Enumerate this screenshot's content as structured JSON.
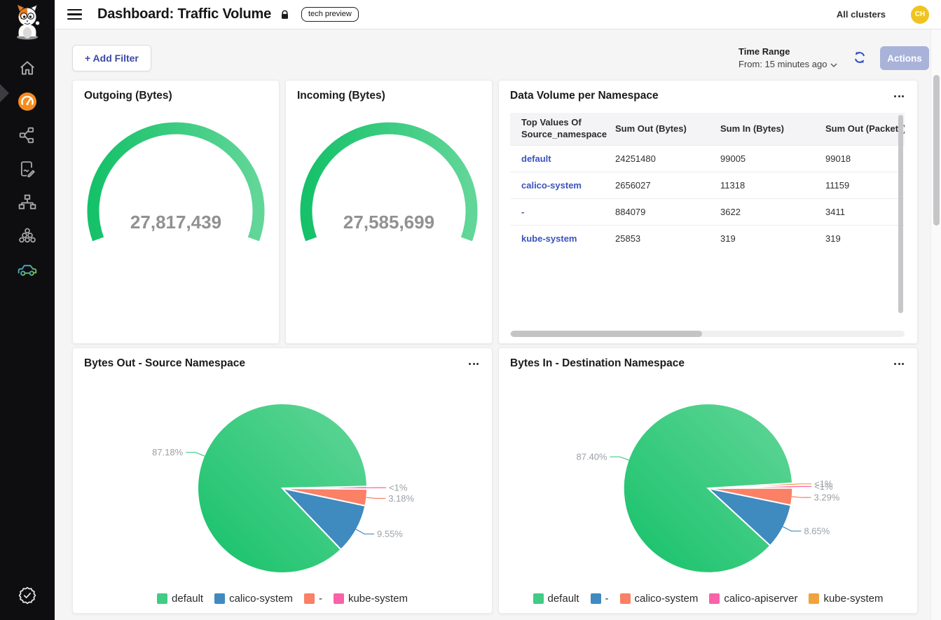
{
  "header": {
    "title": "Dashboard: Traffic Volume",
    "badge": "tech preview",
    "clusters": "All clusters",
    "avatar": "CH"
  },
  "sidebar": {
    "icons": [
      "calico-cat-logo",
      "home",
      "dashboards-gauge",
      "service-graph",
      "policies-edit",
      "network-topology",
      "workload-clusters",
      "traffic-car",
      "compliance-check-badge"
    ],
    "active_item": "dashboards-gauge"
  },
  "toolbar": {
    "add_filter": "+ Add Filter",
    "time_range_label": "Time Range",
    "time_range_value": "From: 15 minutes ago",
    "actions": "Actions"
  },
  "gauges": [
    {
      "title": "Outgoing (Bytes)",
      "display": "27,817,439",
      "value": 27817439
    },
    {
      "title": "Incoming (Bytes)",
      "display": "27,585,699",
      "value": 27585699
    }
  ],
  "table": {
    "title": "Data Volume per Namespace",
    "columns": [
      "Top Values Of Source_namespace",
      "Sum Out (Bytes)",
      "Sum In (Bytes)",
      "Sum Out (Packets)"
    ],
    "rows": [
      [
        "default",
        "24251480",
        "99005",
        "99018"
      ],
      [
        "calico-system",
        "2656027",
        "11318",
        "11159"
      ],
      [
        "-",
        "884079",
        "3622",
        "3411"
      ],
      [
        "kube-system",
        "25853",
        "319",
        "319"
      ]
    ]
  },
  "pies": [
    {
      "title": "Bytes Out - Source Namespace",
      "start_angle": 1.3,
      "slices": [
        {
          "name": "default",
          "label": "87.18%",
          "pct": 87.18,
          "visual_pct": 86.77,
          "color": "#41cb85",
          "gradient": true
        },
        {
          "name": "calico-system",
          "label": "9.55%",
          "pct": 9.55,
          "visual_pct": 9.55,
          "color": "#3f8abf"
        },
        {
          "name": "-",
          "label": "3.18%",
          "pct": 3.18,
          "visual_pct": 3.18,
          "color": "#fa8066"
        },
        {
          "name": "kube-system",
          "label": "<1%",
          "pct": 0.09,
          "visual_pct": 0.5,
          "color": "#f961a8"
        }
      ]
    },
    {
      "title": "Bytes In - Destination Namespace",
      "start_angle": 3.5,
      "slices": [
        {
          "name": "default",
          "label": "87.40%",
          "pct": 87.4,
          "visual_pct": 87.16,
          "color": "#41cb85",
          "gradient": true
        },
        {
          "name": "-",
          "label": "8.65%",
          "pct": 8.65,
          "visual_pct": 8.65,
          "color": "#3f8abf"
        },
        {
          "name": "calico-system",
          "label": "3.29%",
          "pct": 3.29,
          "visual_pct": 3.29,
          "color": "#fa8066"
        },
        {
          "name": "calico-apiserver",
          "label": "<1%",
          "pct": 0.37,
          "visual_pct": 0.45,
          "color": "#f961a8"
        },
        {
          "name": "kube-system",
          "label": "<1%",
          "pct": 0.29,
          "visual_pct": 0.45,
          "color": "#f0a23f"
        }
      ]
    }
  ],
  "chart_data": [
    {
      "type": "gauge",
      "title": "Outgoing (Bytes)",
      "value": 27817439,
      "display": "27,817,439",
      "arc_degrees": [
        200,
        -20
      ],
      "color": "green-gradient"
    },
    {
      "type": "gauge",
      "title": "Incoming (Bytes)",
      "value": 27585699,
      "display": "27,585,699",
      "arc_degrees": [
        200,
        -20
      ],
      "color": "green-gradient"
    },
    {
      "type": "pie",
      "title": "Bytes Out - Source Namespace",
      "labels": [
        "default",
        "calico-system",
        "-",
        "kube-system"
      ],
      "values_pct": [
        87.18,
        9.55,
        3.18,
        0.09
      ],
      "legend_position": "bottom"
    },
    {
      "type": "pie",
      "title": "Bytes In - Destination Namespace",
      "labels": [
        "default",
        "-",
        "calico-system",
        "calico-apiserver",
        "kube-system"
      ],
      "values_pct": [
        87.4,
        8.65,
        3.29,
        0.37,
        0.29
      ],
      "legend_position": "bottom"
    },
    {
      "type": "table",
      "title": "Data Volume per Namespace",
      "columns": [
        "Top Values Of Source_namespace",
        "Sum Out (Bytes)",
        "Sum In (Bytes)",
        "Sum Out (Packets)"
      ],
      "rows": [
        [
          "default",
          24251480,
          99005,
          99018
        ],
        [
          "calico-system",
          2656027,
          11318,
          11159
        ],
        [
          "-",
          884079,
          3622,
          3411
        ],
        [
          "kube-system",
          25853,
          319,
          319
        ]
      ]
    }
  ],
  "colors": {
    "green": "#41cb85",
    "green_dark": "#15c169",
    "green_light": "#62d698",
    "blue": "#3f8abf",
    "salmon": "#fa8066",
    "pink": "#f961a8",
    "orange": "#f0a23f",
    "link_blue": "#3b52bd",
    "active_icon_orange": "#f68c1e",
    "avatar_yellow": "#f0c420",
    "actions_lavender": "#a9b2d8",
    "refresh_blue": "#3353c5",
    "gauge_value_gray": "#8f9193"
  }
}
